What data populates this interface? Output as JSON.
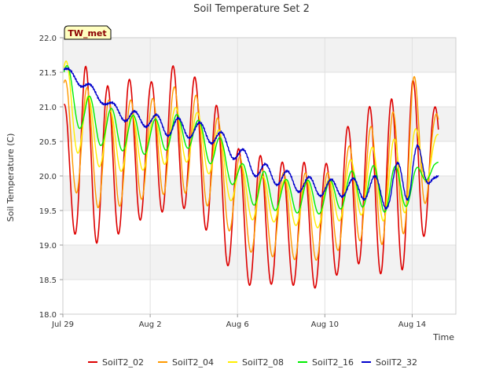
{
  "chart_data": {
    "type": "line",
    "title": "Soil Temperature Set 2",
    "xlabel": "Time",
    "ylabel": "Soil Temperature (C)",
    "site_badge": "TW_met",
    "xlim": [
      0,
      18
    ],
    "ylim": [
      18.0,
      22.0
    ],
    "x_ticks": [
      {
        "value": 0,
        "label": "Jul 29"
      },
      {
        "value": 4,
        "label": "Aug 2"
      },
      {
        "value": 8,
        "label": "Aug 6"
      },
      {
        "value": 12,
        "label": "Aug 10"
      },
      {
        "value": 16,
        "label": "Aug 14"
      }
    ],
    "y_ticks": [
      {
        "value": 18.0,
        "label": "18.0"
      },
      {
        "value": 18.5,
        "label": "18.5"
      },
      {
        "value": 19.0,
        "label": "19.0"
      },
      {
        "value": 19.5,
        "label": "19.5"
      },
      {
        "value": 20.0,
        "label": "20.0"
      },
      {
        "value": 20.5,
        "label": "20.5"
      },
      {
        "value": 21.0,
        "label": "21.0"
      },
      {
        "value": 21.5,
        "label": "21.5"
      },
      {
        "value": 22.0,
        "label": "22.0"
      }
    ],
    "grid": true,
    "legend_position": "bottom",
    "x_days": [
      0,
      1,
      2,
      3,
      4,
      5,
      6,
      7,
      8,
      9,
      10,
      11,
      12,
      13,
      14,
      15,
      16,
      17
    ],
    "series": [
      {
        "name": "SoilT2_02",
        "color": "#dd0000",
        "min": [
          19.35,
          19.0,
          19.05,
          19.25,
          19.45,
          19.5,
          19.55,
          18.95,
          18.5,
          18.35,
          18.5,
          18.35,
          18.4,
          18.7,
          18.75,
          18.45,
          18.8,
          19.4
        ],
        "max": [
          21.0,
          21.6,
          21.3,
          21.4,
          21.35,
          21.6,
          21.45,
          21.05,
          20.4,
          20.3,
          20.2,
          20.2,
          20.15,
          20.7,
          21.0,
          21.1,
          21.4,
          21.0
        ]
      },
      {
        "name": "SoilT2_04",
        "color": "#ff9900",
        "min": [
          20.0,
          19.6,
          19.5,
          19.6,
          19.7,
          19.75,
          19.75,
          19.45,
          19.05,
          18.8,
          18.85,
          18.75,
          18.8,
          19.0,
          19.1,
          18.95,
          19.3,
          19.8
        ],
        "max": [
          21.4,
          21.3,
          21.1,
          21.1,
          21.1,
          21.3,
          21.2,
          20.9,
          20.3,
          20.1,
          20.05,
          20.05,
          20.0,
          20.4,
          20.7,
          20.85,
          21.5,
          20.9
        ]
      },
      {
        "name": "SoilT2_08",
        "color": "#ffee00",
        "min": [
          20.6,
          20.2,
          20.1,
          20.05,
          20.1,
          20.2,
          20.2,
          19.95,
          19.5,
          19.3,
          19.35,
          19.25,
          19.25,
          19.4,
          19.45,
          19.3,
          19.55,
          20.1
        ],
        "max": [
          21.75,
          21.2,
          20.95,
          20.9,
          20.85,
          21.0,
          20.95,
          20.75,
          20.2,
          20.0,
          19.95,
          19.95,
          19.9,
          20.2,
          20.4,
          20.5,
          20.7,
          20.6
        ]
      },
      {
        "name": "SoilT2_16",
        "color": "#00ee00",
        "min": [
          21.1,
          20.55,
          20.4,
          20.35,
          20.3,
          20.4,
          20.4,
          20.1,
          19.8,
          19.5,
          19.5,
          19.45,
          19.45,
          19.55,
          19.55,
          19.45,
          19.6,
          20.1
        ],
        "max": [
          21.7,
          21.2,
          21.0,
          20.9,
          20.8,
          20.9,
          20.85,
          20.65,
          20.2,
          20.1,
          19.95,
          19.95,
          19.9,
          20.05,
          20.15,
          20.15,
          20.1,
          20.2
        ]
      },
      {
        "name": "SoilT2_32",
        "color": "#0000cc",
        "min": [
          21.5,
          21.25,
          21.0,
          20.75,
          20.7,
          20.55,
          20.55,
          20.45,
          20.2,
          19.95,
          19.85,
          19.75,
          19.7,
          19.7,
          19.65,
          19.5,
          19.7,
          19.95
        ],
        "max": [
          21.6,
          21.4,
          21.1,
          20.95,
          20.9,
          20.85,
          20.8,
          20.7,
          20.45,
          20.2,
          20.1,
          20.0,
          19.95,
          19.95,
          20.0,
          20.0,
          20.6,
          20.0
        ]
      }
    ]
  }
}
